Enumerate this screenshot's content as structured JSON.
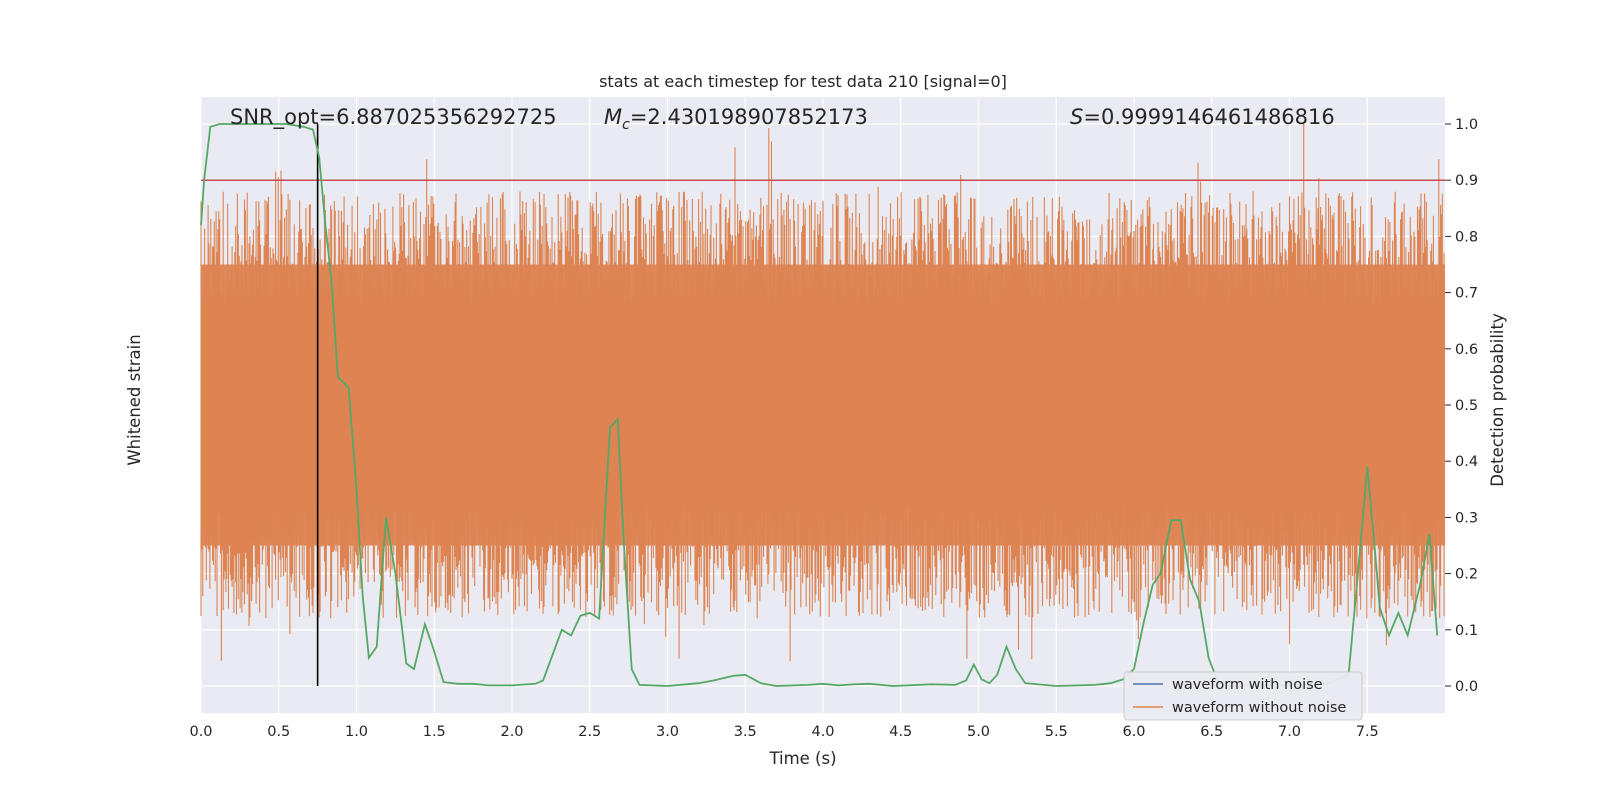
{
  "chart_data": {
    "type": "line",
    "title": "stats at each timestep for test data 210 [signal=0]",
    "xlabel": "Time (s)",
    "ylabel_left": "Whitened strain",
    "ylabel_right": "Detection probability",
    "xlim": [
      0.0,
      8.0
    ],
    "ylim_right": [
      -0.05,
      1.05
    ],
    "xticks": [
      "0.0",
      "0.5",
      "1.0",
      "1.5",
      "2.0",
      "2.5",
      "3.0",
      "3.5",
      "4.0",
      "4.5",
      "5.0",
      "5.5",
      "6.0",
      "6.5",
      "7.0",
      "7.5"
    ],
    "yticks_right": [
      "0.0",
      "0.1",
      "0.2",
      "0.3",
      "0.4",
      "0.5",
      "0.6",
      "0.7",
      "0.8",
      "0.9",
      "1.0"
    ],
    "annotations": {
      "snr": "SNR_opt=6.887025356292725",
      "mc_symbol": "M",
      "mc_sub": "c",
      "mc_value": "=2.430198907852173",
      "s_symbol": "S",
      "s_value": "=0.9999146461486816"
    },
    "threshold": 0.9,
    "marker_time": 0.75,
    "legend": {
      "placement": "lower-right",
      "items": [
        {
          "label": "waveform with noise",
          "color": "#4c72b0"
        },
        {
          "label": "waveform without noise",
          "color": "#dd8452"
        }
      ]
    },
    "noise_band": {
      "color": "#dd8452",
      "typical_low": 0.2,
      "typical_high": 0.8,
      "min": 0.0,
      "max": 1.0
    },
    "series": [
      {
        "name": "Detection probability",
        "color": "#55a868",
        "points": [
          [
            0.0,
            0.82
          ],
          [
            0.02,
            0.9
          ],
          [
            0.06,
            0.995
          ],
          [
            0.12,
            1.0
          ],
          [
            0.25,
            1.0
          ],
          [
            0.4,
            1.0
          ],
          [
            0.55,
            1.0
          ],
          [
            0.66,
            0.995
          ],
          [
            0.72,
            0.99
          ],
          [
            0.76,
            0.94
          ],
          [
            0.8,
            0.82
          ],
          [
            0.84,
            0.72
          ],
          [
            0.88,
            0.55
          ],
          [
            0.95,
            0.53
          ],
          [
            1.0,
            0.35
          ],
          [
            1.04,
            0.16
          ],
          [
            1.08,
            0.05
          ],
          [
            1.13,
            0.07
          ],
          [
            1.19,
            0.3
          ],
          [
            1.25,
            0.2
          ],
          [
            1.32,
            0.04
          ],
          [
            1.37,
            0.03
          ],
          [
            1.44,
            0.11
          ],
          [
            1.49,
            0.07
          ],
          [
            1.56,
            0.007
          ],
          [
            1.65,
            0.004
          ],
          [
            1.75,
            0.004
          ],
          [
            1.85,
            0.001
          ],
          [
            2.0,
            0.001
          ],
          [
            2.15,
            0.004
          ],
          [
            2.2,
            0.01
          ],
          [
            2.32,
            0.1
          ],
          [
            2.38,
            0.09
          ],
          [
            2.44,
            0.125
          ],
          [
            2.5,
            0.13
          ],
          [
            2.56,
            0.12
          ],
          [
            2.63,
            0.46
          ],
          [
            2.68,
            0.475
          ],
          [
            2.72,
            0.25
          ],
          [
            2.77,
            0.03
          ],
          [
            2.82,
            0.002
          ],
          [
            3.0,
            0.0
          ],
          [
            3.2,
            0.005
          ],
          [
            3.3,
            0.01
          ],
          [
            3.42,
            0.018
          ],
          [
            3.5,
            0.02
          ],
          [
            3.6,
            0.005
          ],
          [
            3.7,
            0.0
          ],
          [
            3.9,
            0.002
          ],
          [
            4.0,
            0.004
          ],
          [
            4.1,
            0.001
          ],
          [
            4.2,
            0.003
          ],
          [
            4.3,
            0.004
          ],
          [
            4.45,
            0.0
          ],
          [
            4.7,
            0.003
          ],
          [
            4.85,
            0.002
          ],
          [
            4.92,
            0.01
          ],
          [
            4.97,
            0.038
          ],
          [
            5.02,
            0.012
          ],
          [
            5.07,
            0.005
          ],
          [
            5.12,
            0.02
          ],
          [
            5.18,
            0.07
          ],
          [
            5.24,
            0.03
          ],
          [
            5.3,
            0.005
          ],
          [
            5.5,
            0.0
          ],
          [
            5.75,
            0.002
          ],
          [
            5.85,
            0.005
          ],
          [
            5.93,
            0.012
          ],
          [
            6.0,
            0.03
          ],
          [
            6.06,
            0.11
          ],
          [
            6.12,
            0.18
          ],
          [
            6.17,
            0.2
          ],
          [
            6.24,
            0.295
          ],
          [
            6.3,
            0.295
          ],
          [
            6.36,
            0.19
          ],
          [
            6.42,
            0.15
          ],
          [
            6.48,
            0.05
          ],
          [
            6.55,
            0.0
          ],
          [
            6.75,
            0.0
          ],
          [
            7.0,
            0.002
          ],
          [
            7.25,
            0.005
          ],
          [
            7.38,
            0.02
          ],
          [
            7.44,
            0.2
          ],
          [
            7.5,
            0.39
          ],
          [
            7.55,
            0.24
          ],
          [
            7.58,
            0.14
          ],
          [
            7.64,
            0.09
          ],
          [
            7.7,
            0.13
          ],
          [
            7.76,
            0.09
          ],
          [
            7.84,
            0.18
          ],
          [
            7.9,
            0.27
          ],
          [
            7.95,
            0.09
          ]
        ]
      }
    ]
  }
}
